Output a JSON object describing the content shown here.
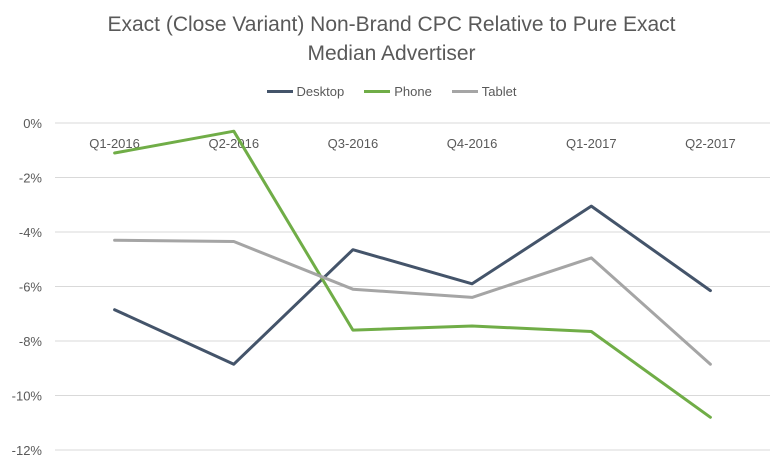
{
  "chart_data": {
    "type": "line",
    "title_line1": "Exact (Close Variant) Non-Brand CPC Relative to Pure Exact",
    "title_line2": "Median Advertiser",
    "categories": [
      "Q1-2016",
      "Q2-2016",
      "Q3-2016",
      "Q4-2016",
      "Q1-2017",
      "Q2-2017"
    ],
    "series": [
      {
        "name": "Desktop",
        "color": "#44546a",
        "values": [
          -6.85,
          -8.85,
          -4.65,
          -5.9,
          -3.05,
          -6.15
        ]
      },
      {
        "name": "Phone",
        "color": "#70ad47",
        "values": [
          -1.1,
          -0.3,
          -7.6,
          -7.45,
          -7.65,
          -10.8
        ]
      },
      {
        "name": "Tablet",
        "color": "#a5a5a5",
        "values": [
          -4.3,
          -4.35,
          -6.1,
          -6.4,
          -4.95,
          -8.85
        ]
      }
    ],
    "ylim": [
      -12,
      0
    ],
    "yticks": [
      0,
      -2,
      -4,
      -6,
      -8,
      -10,
      -12
    ],
    "ytick_labels": [
      "0%",
      "-2%",
      "-4%",
      "-6%",
      "-8%",
      "-10%",
      "-12%"
    ],
    "grid": true,
    "legend_position": "top"
  }
}
